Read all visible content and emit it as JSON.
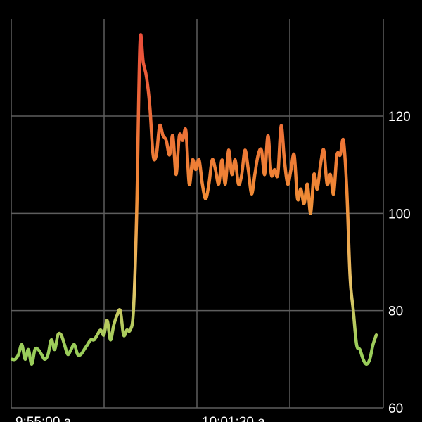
{
  "chart_data": {
    "type": "line",
    "title": "",
    "xlabel": "",
    "ylabel": "",
    "ylim": [
      60,
      140
    ],
    "y_ticks": [
      60,
      80,
      100,
      120
    ],
    "y_tick_labels": [
      "60",
      "80",
      "100",
      "120"
    ],
    "x_tick_labels": [
      "9:55:00 a",
      "10:01:30 a"
    ],
    "grid": true,
    "colors": {
      "low": "#9acd5a",
      "mid": "#e8c468",
      "high": "#f08a35",
      "peak": "#ea4f3a"
    },
    "series": [
      {
        "values": [
          70,
          70,
          71,
          73,
          70,
          72,
          69,
          72,
          72,
          71,
          70,
          71,
          74,
          72,
          75,
          75,
          73,
          71,
          72,
          73,
          71,
          71,
          72,
          73,
          74,
          74,
          75,
          76,
          75,
          78,
          74,
          77,
          79,
          80,
          75,
          76,
          76,
          80,
          100,
          135,
          131,
          128,
          122,
          112,
          112,
          118,
          116,
          115,
          112,
          116,
          108,
          116,
          115,
          117,
          106,
          111,
          109,
          111,
          106,
          103,
          106,
          111,
          109,
          106,
          111,
          106,
          113,
          108,
          111,
          106,
          108,
          113,
          109,
          104,
          108,
          112,
          113,
          108,
          116,
          108,
          109,
          108,
          118,
          111,
          106,
          109,
          112,
          103,
          105,
          102,
          106,
          100,
          108,
          105,
          110,
          113,
          106,
          108,
          104,
          112,
          112,
          115,
          105,
          87,
          80,
          73,
          72,
          70,
          69,
          70,
          73,
          75
        ]
      }
    ]
  }
}
